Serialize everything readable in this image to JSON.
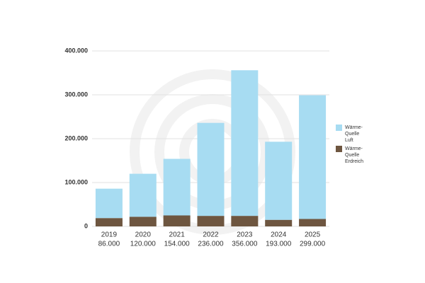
{
  "chart_data": {
    "type": "stacked_bar",
    "categories": [
      "2019",
      "2020",
      "2021",
      "2022",
      "2023",
      "2024",
      "2025"
    ],
    "category_totals": [
      "86.000",
      "120.000",
      "154.000",
      "236.000",
      "356.000",
      "193.000",
      "299.000"
    ],
    "series": [
      {
        "name": "Wärme-Quelle Erdreich",
        "color": "#6e5640",
        "values": [
          19000,
          22000,
          25000,
          24000,
          24000,
          15000,
          17000
        ]
      },
      {
        "name": "Wärme-Quelle Luft",
        "color": "#a7dcf2",
        "values": [
          67000,
          98000,
          129000,
          212000,
          332000,
          178000,
          282000
        ]
      }
    ],
    "ylim": [
      0,
      400000
    ],
    "yticks": [
      0,
      {
        "value": 100000,
        "label": "100.000"
      },
      {
        "value": 200000,
        "label": "200.000"
      },
      {
        "value": 300000,
        "label": "300.000"
      },
      {
        "value": 400000,
        "label": "400.000"
      }
    ],
    "grid": true
  }
}
